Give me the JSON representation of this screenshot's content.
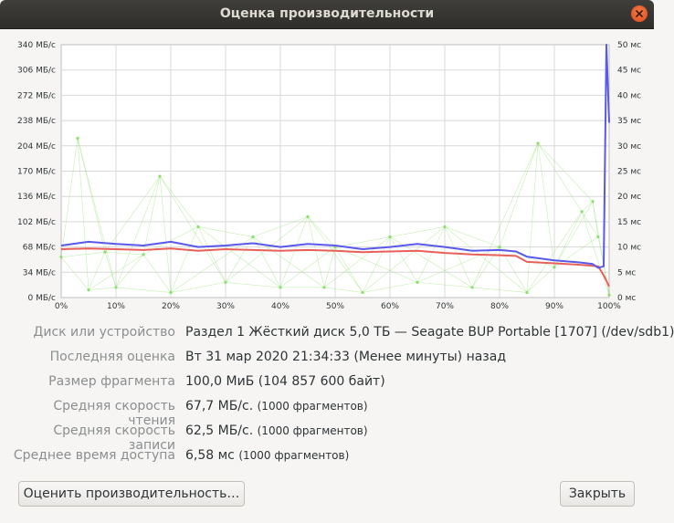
{
  "window": {
    "title": "Оценка производительности"
  },
  "icons": {
    "close": "close-icon"
  },
  "chart_data": {
    "type": "line",
    "x_ticks": [
      "0%",
      "10%",
      "20%",
      "30%",
      "40%",
      "50%",
      "60%",
      "70%",
      "80%",
      "90%",
      "100%"
    ],
    "y_left_ticks": [
      "0 МБ/с",
      "34 МБ/с",
      "68 МБ/с",
      "102 МБ/с",
      "136 МБ/с",
      "170 МБ/с",
      "204 МБ/с",
      "238 МБ/с",
      "272 МБ/с",
      "306 МБ/с",
      "340 МБ/с"
    ],
    "y_right_ticks": [
      "0 мс",
      "5 мс",
      "10 мс",
      "15 мс",
      "20 мс",
      "25 мс",
      "30 мс",
      "35 мс",
      "40 мс",
      "45 мс",
      "50 мс"
    ],
    "xlim": [
      0,
      100
    ],
    "ylim_left": [
      0,
      340
    ],
    "ylim_right": [
      0,
      50
    ],
    "grid": true,
    "colors": {
      "read": "#5959ea",
      "write": "#e9605a",
      "access": "#8ae06a"
    },
    "series": [
      {
        "key": "read",
        "x": [
          0,
          5,
          10,
          15,
          20,
          25,
          30,
          35,
          40,
          45,
          50,
          55,
          60,
          65,
          70,
          75,
          80,
          83,
          85,
          90,
          95,
          97,
          98,
          99,
          99.5,
          100
        ],
        "values": [
          70,
          75,
          72,
          70,
          75,
          68,
          70,
          73,
          68,
          72,
          70,
          65,
          68,
          72,
          68,
          63,
          64,
          62,
          55,
          50,
          47,
          45,
          40,
          42,
          340,
          235
        ]
      },
      {
        "key": "write",
        "x": [
          0,
          5,
          10,
          15,
          20,
          25,
          30,
          35,
          40,
          45,
          50,
          55,
          60,
          65,
          70,
          75,
          80,
          83,
          85,
          90,
          95,
          98,
          99,
          100
        ],
        "values": [
          65,
          66,
          65,
          64,
          66,
          63,
          65,
          64,
          63,
          64,
          63,
          61,
          62,
          63,
          60,
          58,
          57,
          56,
          48,
          46,
          44,
          42,
          30,
          15
        ]
      },
      {
        "key": "access",
        "x": [
          0,
          3,
          5,
          8,
          10,
          15,
          18,
          20,
          25,
          30,
          35,
          40,
          45,
          48,
          50,
          55,
          60,
          65,
          70,
          75,
          80,
          85,
          87,
          90,
          95,
          97,
          98,
          100
        ],
        "values": [
          8,
          31.5,
          1.5,
          9,
          2,
          8.5,
          24,
          1,
          14,
          3,
          12,
          2,
          16,
          2,
          10,
          1,
          12,
          3,
          14,
          2,
          10,
          1,
          30.5,
          6,
          17,
          19,
          12,
          0.5
        ]
      }
    ]
  },
  "info": [
    {
      "label": "Диск или устройство",
      "value": "Раздел 1 Жёсткий диск 5,0 ТБ — Seagate BUP Portable [1707] (/dev/sdb1)",
      "sub": ""
    },
    {
      "label": "Последняя оценка",
      "value": "Вт 31 мар 2020 21:34:33 (Менее минуты) назад",
      "sub": ""
    },
    {
      "label": "Размер фрагмента",
      "value": "100,0 МиБ (104 857 600 байт)",
      "sub": ""
    },
    {
      "label": "Средняя скорость чтения",
      "value": "67,7 МБ/с.",
      "sub": "(1000 фрагментов)"
    },
    {
      "label": "Средняя скорость записи",
      "value": "62,5 МБ/с.",
      "sub": "(1000 фрагментов)"
    },
    {
      "label": "Среднее время доступа",
      "value": "6,58 мс",
      "sub": "(1000 фрагментов)"
    }
  ],
  "buttons": {
    "benchmark": "Оценить производительность…",
    "close": "Закрыть"
  }
}
